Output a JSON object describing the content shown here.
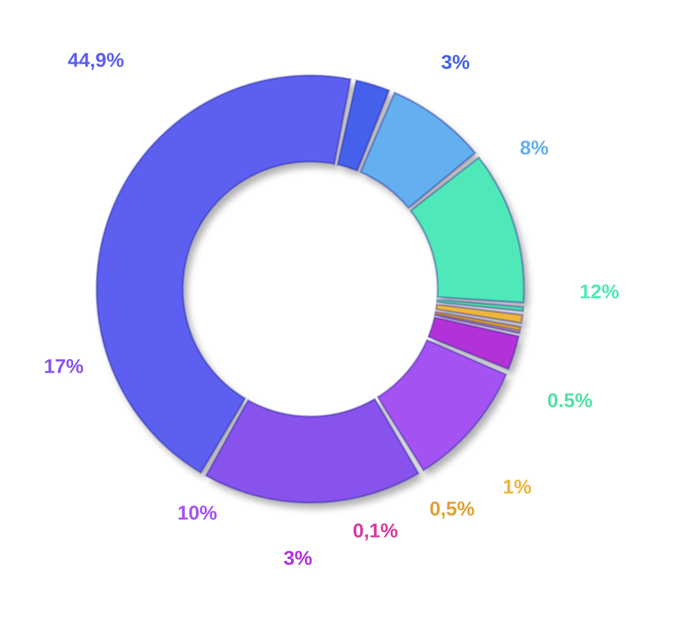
{
  "chart_data": {
    "type": "donut",
    "categories": [
      null,
      null,
      null,
      null,
      null,
      null,
      null,
      null,
      null,
      null,
      null
    ],
    "values": [
      44.9,
      3,
      8,
      12,
      0.5,
      1,
      0.5,
      0.1,
      3,
      10,
      17
    ],
    "value_labels": [
      "44,9%",
      "3%",
      "8%",
      "12%",
      "0.5%",
      "1%",
      "0,5%",
      "0,1%",
      "3%",
      "10%",
      "17%"
    ],
    "colors": [
      "#5b5ef0",
      "#4560ea",
      "#63aff0",
      "#4fe8b8",
      "#52e0a6",
      "#f0b63a",
      "#e2a030",
      "#d63aa0",
      "#b232d8",
      "#a452f2",
      "#8752ec"
    ]
  }
}
